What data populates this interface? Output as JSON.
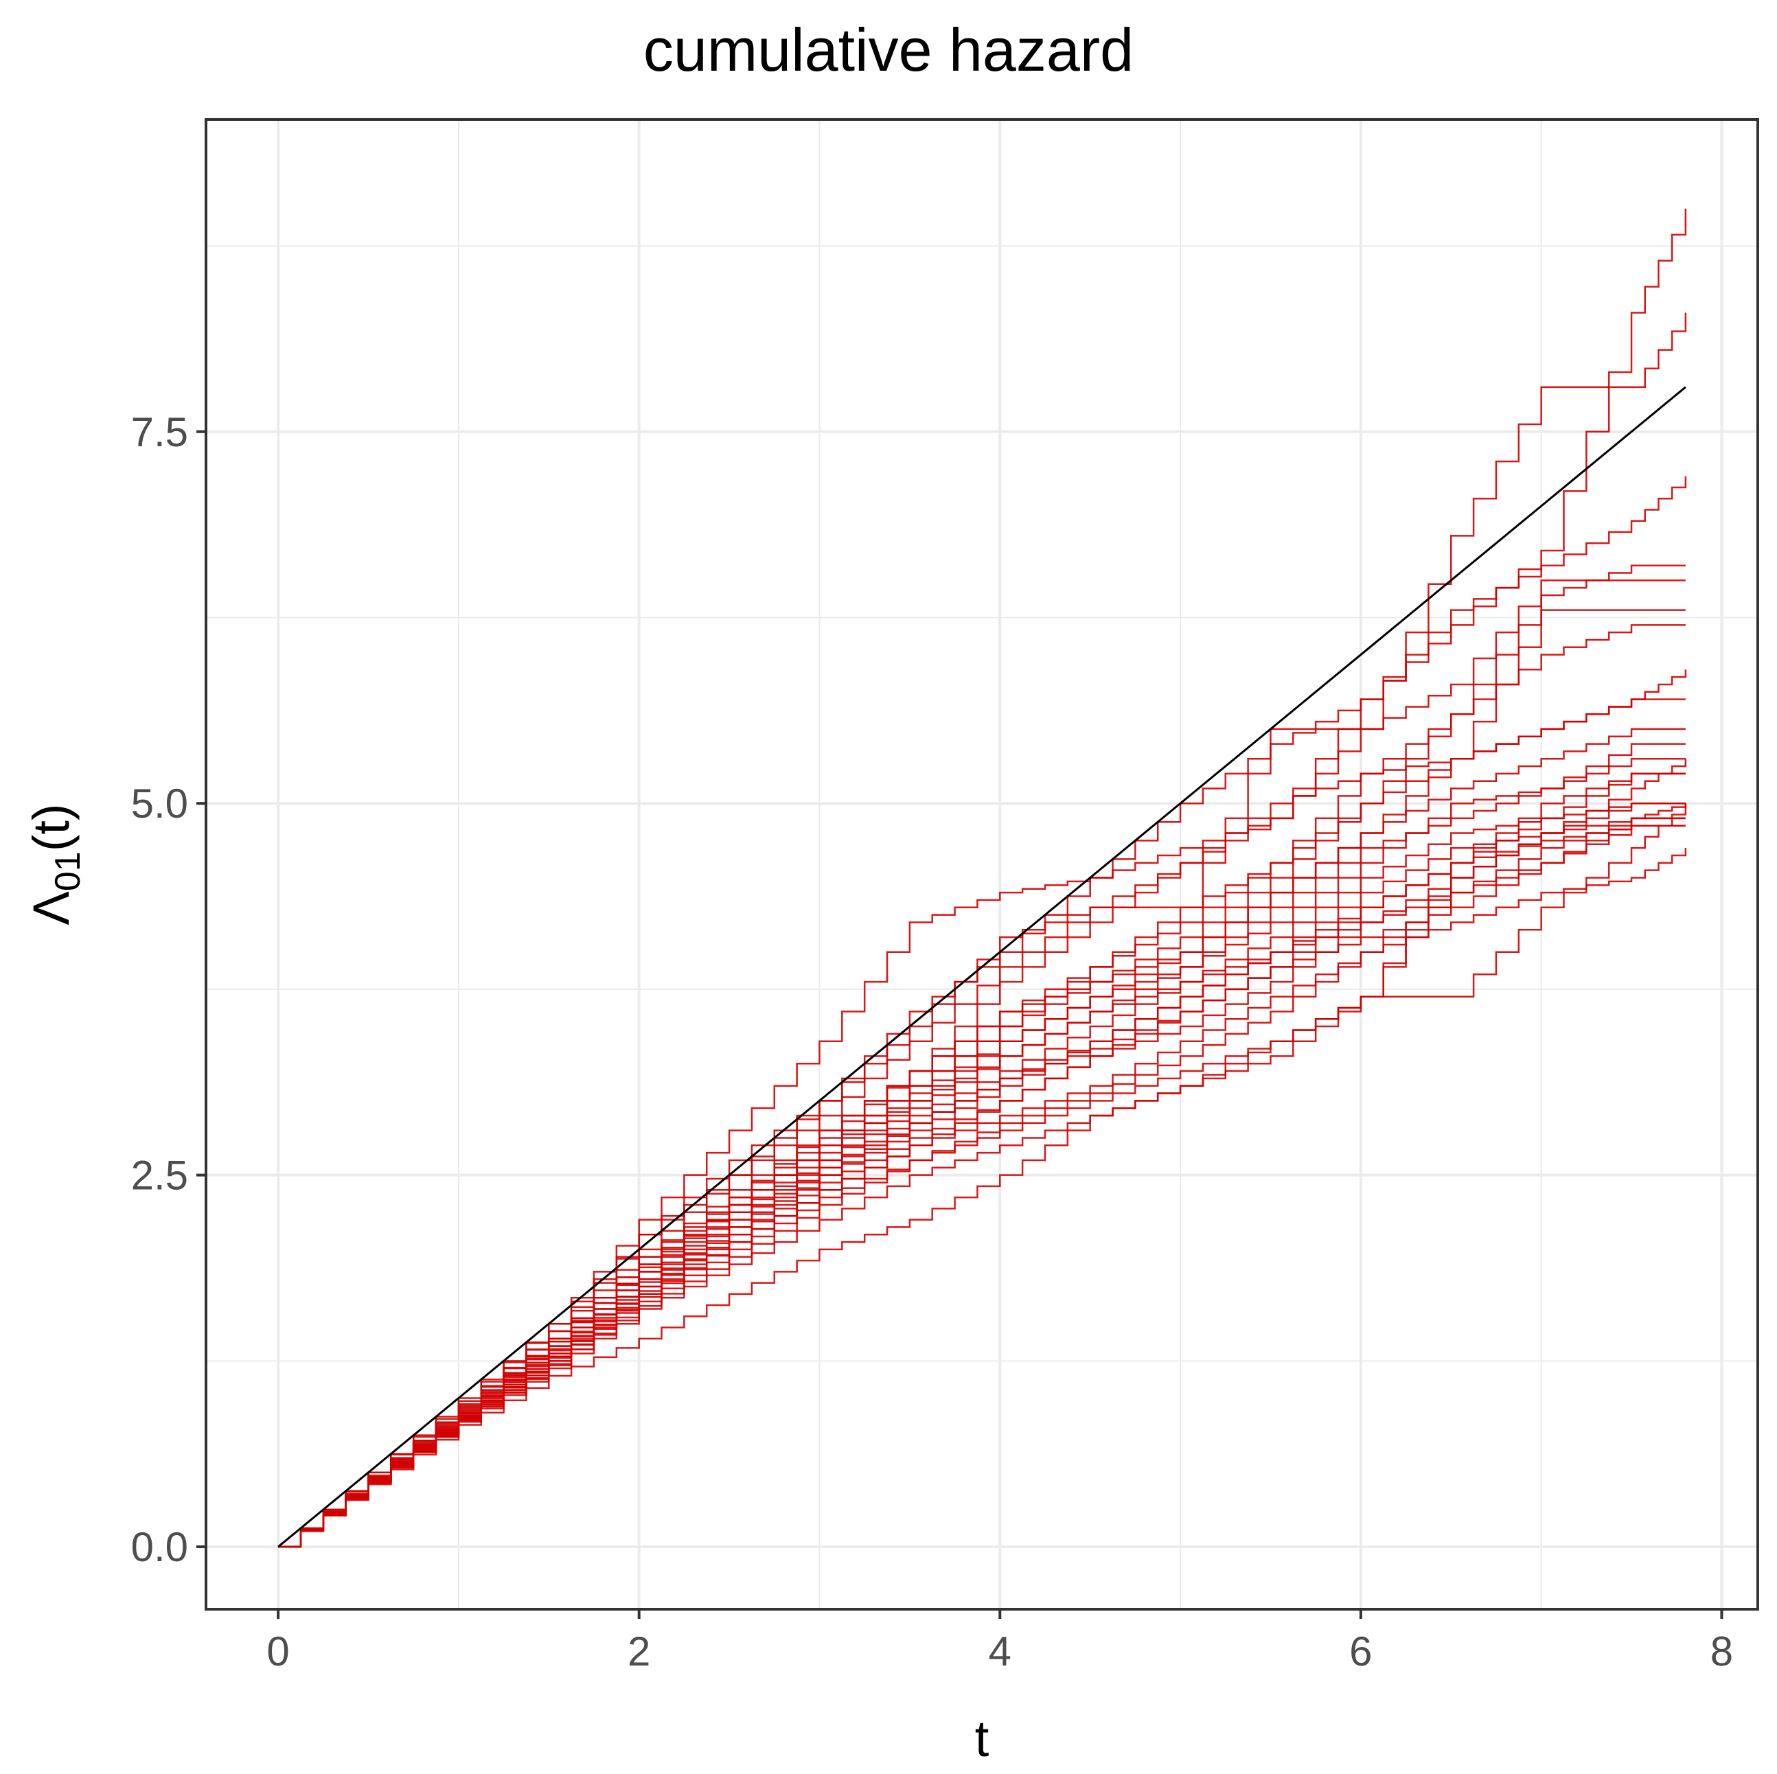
{
  "chart_data": {
    "type": "line",
    "title": "cumulative hazard",
    "xlabel": "t",
    "ylabel": "Λ01(t)",
    "xlim": [
      -0.4,
      8.2
    ],
    "ylim": [
      -0.42,
      9.6
    ],
    "x_ticks": [
      0,
      2,
      4,
      6,
      8
    ],
    "x_tick_labels": [
      "0",
      "2",
      "4",
      "6",
      "8"
    ],
    "y_ticks": [
      0.0,
      2.5,
      5.0,
      7.5
    ],
    "y_tick_labels": [
      "0.0",
      "2.5",
      "5.0",
      "7.5"
    ],
    "grid": true,
    "legend": "none",
    "colors": {
      "reference": "#000000",
      "estimates": "#d10000",
      "grid": "#ebebeb",
      "panel_border": "#333333"
    },
    "reference_series": {
      "name": "true",
      "x": [
        0,
        7.8
      ],
      "y": [
        0,
        7.8
      ]
    },
    "series": [
      {
        "x": [
          0,
          0.5,
          1,
          1.5,
          2,
          2.5,
          3,
          3.5,
          4,
          4.5,
          5,
          5.5,
          6,
          6.5,
          7,
          7.5,
          7.8
        ],
        "y": [
          0,
          0.5,
          1.0,
          1.5,
          2.1,
          2.6,
          3.0,
          3.6,
          4.0,
          4.5,
          5.0,
          5.4,
          5.7,
          6.3,
          6.6,
          6.9,
          7.2
        ]
      },
      {
        "x": [
          0,
          0.5,
          1,
          1.5,
          2,
          2.5,
          3,
          3.5,
          4,
          4.5,
          5,
          5.5,
          6,
          6.5,
          7,
          7.5,
          7.8
        ],
        "y": [
          0,
          0.5,
          0.98,
          1.5,
          2.2,
          2.8,
          3.4,
          4.2,
          4.4,
          4.5,
          4.7,
          4.9,
          5.5,
          6.8,
          7.8,
          7.8,
          8.3
        ]
      },
      {
        "x": [
          0,
          0.5,
          1,
          1.5,
          2,
          2.5,
          3,
          3.5,
          4,
          4.5,
          5,
          5.5,
          6,
          6.5,
          7,
          7.5,
          7.8
        ],
        "y": [
          0,
          0.48,
          0.95,
          1.45,
          2.0,
          2.5,
          2.9,
          3.4,
          3.9,
          4.3,
          4.6,
          4.9,
          5.7,
          6.2,
          6.7,
          8.3,
          9.0
        ]
      },
      {
        "x": [
          0,
          0.5,
          1,
          1.5,
          2,
          2.5,
          3,
          3.5,
          4,
          4.5,
          5,
          5.5,
          6,
          6.5,
          7,
          7.5,
          7.8
        ],
        "y": [
          0,
          0.47,
          0.94,
          1.4,
          1.95,
          2.4,
          2.8,
          3.2,
          3.6,
          3.9,
          4.2,
          4.6,
          5.2,
          5.6,
          6.4,
          6.6,
          6.6
        ]
      },
      {
        "x": [
          0,
          0.5,
          1,
          1.5,
          2,
          2.5,
          3,
          3.5,
          4,
          4.5,
          5,
          5.5,
          6,
          6.5,
          7,
          7.5,
          7.8
        ],
        "y": [
          0,
          0.46,
          0.92,
          1.38,
          1.9,
          2.3,
          2.7,
          3.1,
          3.5,
          3.8,
          4.0,
          4.4,
          4.8,
          5.3,
          5.5,
          5.7,
          5.9
        ]
      },
      {
        "x": [
          0,
          0.5,
          1,
          1.5,
          2,
          2.5,
          3,
          3.5,
          4,
          4.5,
          5,
          5.5,
          6,
          6.5,
          7,
          7.5,
          7.8
        ],
        "y": [
          0,
          0.46,
          0.9,
          1.35,
          1.85,
          2.25,
          2.6,
          3.0,
          3.4,
          3.7,
          3.9,
          4.2,
          4.6,
          5.0,
          5.1,
          5.4,
          5.4
        ]
      },
      {
        "x": [
          0,
          0.5,
          1,
          1.5,
          2,
          2.5,
          3,
          3.5,
          4,
          4.5,
          5,
          5.5,
          6,
          6.5,
          7,
          7.5,
          7.8
        ],
        "y": [
          0,
          0.45,
          0.9,
          1.33,
          1.8,
          2.2,
          2.55,
          2.9,
          3.2,
          3.5,
          3.8,
          4.0,
          4.3,
          4.6,
          4.9,
          5.2,
          5.2
        ]
      },
      {
        "x": [
          0,
          0.5,
          1,
          1.5,
          2,
          2.5,
          3,
          3.5,
          4,
          4.5,
          5,
          5.5,
          6,
          6.5,
          7,
          7.5,
          7.8
        ],
        "y": [
          0,
          0.45,
          0.88,
          1.3,
          1.78,
          2.15,
          2.5,
          2.8,
          3.1,
          3.4,
          3.7,
          4.0,
          4.2,
          4.4,
          4.6,
          4.85,
          4.85
        ]
      },
      {
        "x": [
          0,
          0.5,
          1,
          1.5,
          2,
          2.5,
          3,
          3.5,
          4,
          4.5,
          5,
          5.5,
          6,
          6.5,
          7,
          7.5,
          7.8
        ],
        "y": [
          0,
          0.44,
          0.87,
          1.28,
          1.75,
          2.1,
          2.45,
          2.75,
          3.0,
          3.3,
          3.6,
          3.9,
          4.1,
          4.3,
          4.6,
          4.9,
          5.0
        ]
      },
      {
        "x": [
          0,
          0.5,
          1,
          1.5,
          2,
          2.5,
          3,
          3.5,
          4,
          4.5,
          5,
          5.5,
          6,
          6.5,
          7,
          7.5,
          7.8
        ],
        "y": [
          0,
          0.44,
          0.86,
          1.25,
          1.7,
          2.05,
          2.4,
          2.7,
          2.9,
          3.1,
          3.4,
          3.7,
          4.0,
          4.2,
          4.4,
          4.5,
          4.7
        ]
      },
      {
        "x": [
          0,
          0.5,
          1,
          1.5,
          2,
          2.5,
          3,
          3.5,
          4,
          4.5,
          5,
          5.5,
          6,
          6.5,
          7,
          7.5,
          7.8
        ],
        "y": [
          0,
          0.43,
          0.85,
          1.22,
          1.65,
          2.0,
          2.35,
          2.6,
          2.8,
          3.0,
          3.2,
          3.4,
          3.7,
          4.5,
          4.8,
          5.1,
          5.3
        ]
      },
      {
        "x": [
          0,
          0.5,
          1,
          1.5,
          2,
          2.5,
          3,
          3.5,
          4,
          4.5,
          5,
          5.5,
          6,
          6.5,
          7,
          7.5,
          7.8
        ],
        "y": [
          0,
          0.43,
          0.84,
          1.2,
          1.6,
          1.9,
          2.2,
          2.5,
          2.7,
          2.9,
          3.1,
          3.3,
          3.7,
          4.6,
          5.0,
          5.2,
          5.2
        ]
      },
      {
        "x": [
          0,
          0.5,
          1,
          1.5,
          2,
          2.5,
          3,
          3.5,
          4,
          4.5,
          5,
          5.5,
          6,
          6.5,
          7,
          7.5,
          7.8
        ],
        "y": [
          0,
          0.42,
          0.82,
          1.15,
          1.4,
          1.7,
          2.0,
          2.2,
          2.5,
          2.9,
          3.1,
          3.4,
          3.7,
          3.7,
          4.3,
          4.7,
          5.0
        ]
      },
      {
        "x": [
          0,
          0.5,
          1,
          1.5,
          2,
          2.5,
          3,
          3.5,
          4,
          4.5,
          5,
          5.5,
          6,
          6.5,
          7,
          7.5,
          7.8
        ],
        "y": [
          0,
          0.47,
          0.96,
          1.45,
          2.1,
          2.5,
          3.0,
          3.5,
          4.1,
          4.3,
          4.3,
          5.5,
          5.5,
          5.8,
          6.5,
          6.5,
          6.5
        ]
      },
      {
        "x": [
          0,
          0.5,
          1,
          1.5,
          2,
          2.5,
          3,
          3.5,
          4,
          4.5,
          5,
          5.5,
          6,
          6.5,
          7,
          7.5,
          7.8
        ],
        "y": [
          0,
          0.46,
          0.93,
          1.4,
          1.95,
          2.35,
          2.75,
          3.2,
          3.8,
          4.2,
          4.6,
          5.0,
          5.2,
          5.3,
          6.3,
          6.3,
          6.3
        ]
      },
      {
        "x": [
          0,
          0.5,
          1,
          1.5,
          2,
          2.5,
          3,
          3.5,
          4,
          4.5,
          5,
          5.5,
          6,
          6.5,
          7,
          7.5,
          7.8
        ],
        "y": [
          0,
          0.45,
          0.9,
          1.35,
          1.85,
          2.3,
          2.7,
          3.1,
          3.5,
          3.9,
          4.3,
          4.6,
          5.0,
          5.3,
          5.5,
          5.7,
          5.7
        ]
      },
      {
        "x": [
          0,
          0.5,
          1,
          1.5,
          2,
          2.5,
          3,
          3.5,
          4,
          4.5,
          5,
          5.5,
          6,
          6.5,
          7,
          7.5,
          7.8
        ],
        "y": [
          0,
          0.44,
          0.88,
          1.3,
          1.75,
          2.2,
          2.6,
          2.95,
          3.3,
          3.6,
          3.9,
          4.3,
          4.7,
          4.9,
          5.1,
          5.3,
          5.3
        ]
      },
      {
        "x": [
          0,
          0.5,
          1,
          1.5,
          2,
          2.5,
          3,
          3.5,
          4,
          4.5,
          5,
          5.5,
          6,
          6.5,
          7,
          7.5,
          7.8
        ],
        "y": [
          0,
          0.44,
          0.87,
          1.28,
          1.7,
          2.1,
          2.5,
          2.85,
          3.15,
          3.4,
          3.7,
          4.0,
          4.4,
          4.7,
          4.8,
          4.9,
          4.9
        ]
      },
      {
        "x": [
          0,
          0.5,
          1,
          1.5,
          2,
          2.5,
          3,
          3.5,
          4,
          4.5,
          5,
          5.5,
          6,
          6.5,
          7,
          7.5,
          7.8
        ],
        "y": [
          0,
          0.43,
          0.86,
          1.25,
          1.68,
          2.05,
          2.4,
          2.7,
          3.0,
          3.3,
          3.5,
          3.8,
          4.2,
          4.5,
          4.8,
          5.0,
          5.0
        ]
      },
      {
        "x": [
          0,
          0.5,
          1,
          1.5,
          2,
          2.5,
          3,
          3.5,
          4,
          4.5,
          5,
          5.5,
          6,
          6.5,
          7,
          7.5,
          7.8
        ],
        "y": [
          0,
          0.43,
          0.85,
          1.23,
          1.62,
          1.95,
          2.3,
          2.6,
          2.85,
          3.05,
          3.3,
          3.6,
          4.0,
          4.4,
          4.7,
          4.9,
          4.9
        ]
      },
      {
        "x": [
          0,
          0.5,
          1,
          1.5,
          2,
          2.5,
          3,
          3.5,
          4,
          4.5,
          5,
          5.5,
          6,
          6.5,
          7,
          7.5,
          7.8
        ],
        "y": [
          0,
          0.45,
          0.9,
          1.38,
          1.9,
          2.35,
          2.8,
          3.2,
          3.6,
          3.8,
          4.1,
          4.5,
          5.0,
          5.6,
          6.0,
          6.2,
          6.2
        ]
      },
      {
        "x": [
          0,
          0.5,
          1,
          1.5,
          2,
          2.5,
          3,
          3.5,
          4,
          4.5,
          5,
          5.5,
          6,
          6.5,
          7,
          7.5,
          7.8
        ],
        "y": [
          0,
          0.44,
          0.89,
          1.32,
          1.8,
          2.25,
          2.65,
          3.05,
          3.4,
          3.7,
          4.0,
          4.4,
          4.8,
          5.1,
          5.3,
          5.5,
          5.5
        ]
      },
      {
        "x": [
          0,
          0.5,
          1,
          1.5,
          2,
          2.5,
          3,
          3.5,
          4,
          4.5,
          5,
          5.5,
          6,
          6.5,
          7,
          7.5,
          7.8
        ],
        "y": [
          0,
          0.46,
          0.91,
          1.4,
          1.88,
          2.3,
          2.7,
          3.0,
          3.3,
          3.6,
          3.8,
          4.1,
          4.5,
          4.8,
          4.9,
          5.0,
          5.0
        ]
      },
      {
        "x": [
          0,
          0.5,
          1,
          1.5,
          2,
          2.5,
          3,
          3.5,
          4,
          4.5,
          5,
          5.5,
          6,
          6.5,
          7,
          7.5,
          7.8
        ],
        "y": [
          0,
          0.44,
          0.87,
          1.27,
          1.72,
          2.15,
          2.55,
          2.85,
          3.15,
          3.35,
          3.6,
          3.9,
          4.3,
          4.6,
          4.75,
          4.85,
          4.85
        ]
      }
    ]
  }
}
